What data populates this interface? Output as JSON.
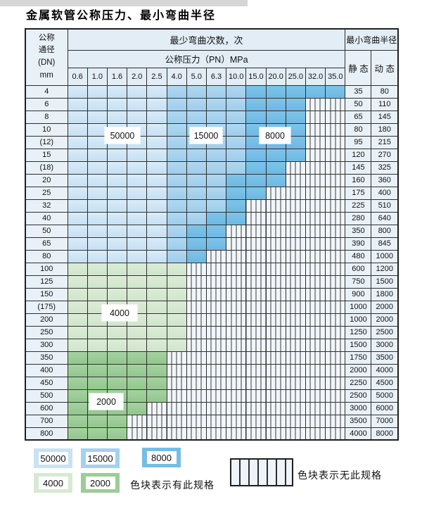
{
  "page": {
    "title": "金属软管公称压力、最小弯曲半径"
  },
  "table": {
    "corner_lines": [
      "公称",
      "通径",
      "(DN)",
      "mm"
    ],
    "bend_times_header": "最少弯曲次数，次",
    "pressure_header": "公称压力（PN）MPa",
    "radius_header": "最小弯曲半径",
    "static_label": "静 态",
    "dynamic_label": "动 态",
    "pressure_columns": [
      "0.6",
      "1.0",
      "1.6",
      "2.0",
      "2.5",
      "4.0",
      "5.0",
      "6.3",
      "10.0",
      "15.0",
      "20.0",
      "25.0",
      "32.0",
      "35.0"
    ],
    "rows": [
      {
        "dn": "4",
        "static": "35",
        "dynamic": "80",
        "palette": "blue",
        "light": 5,
        "medium": 4,
        "dark": 5
      },
      {
        "dn": "6",
        "static": "50",
        "dynamic": "110",
        "palette": "blue",
        "light": 5,
        "medium": 4,
        "dark": 3
      },
      {
        "dn": "8",
        "static": "65",
        "dynamic": "145",
        "palette": "blue",
        "light": 5,
        "medium": 4,
        "dark": 3
      },
      {
        "dn": "10",
        "static": "80",
        "dynamic": "180",
        "palette": "blue",
        "light": 5,
        "medium": 4,
        "dark": 3
      },
      {
        "dn": "(12)",
        "static": "95",
        "dynamic": "215",
        "palette": "blue",
        "light": 5,
        "medium": 4,
        "dark": 3
      },
      {
        "dn": "15",
        "static": "120",
        "dynamic": "270",
        "palette": "blue",
        "light": 5,
        "medium": 4,
        "dark": 3
      },
      {
        "dn": "(18)",
        "static": "145",
        "dynamic": "325",
        "palette": "blue",
        "light": 5,
        "medium": 4,
        "dark": 2
      },
      {
        "dn": "20",
        "static": "160",
        "dynamic": "360",
        "palette": "blue",
        "light": 5,
        "medium": 3,
        "dark": 3
      },
      {
        "dn": "25",
        "static": "175",
        "dynamic": "400",
        "palette": "blue",
        "light": 5,
        "medium": 3,
        "dark": 2
      },
      {
        "dn": "32",
        "static": "225",
        "dynamic": "510",
        "palette": "blue",
        "light": 5,
        "medium": 3,
        "dark": 1
      },
      {
        "dn": "40",
        "static": "280",
        "dynamic": "640",
        "palette": "blue",
        "light": 5,
        "medium": 2,
        "dark": 2
      },
      {
        "dn": "50",
        "static": "350",
        "dynamic": "800",
        "palette": "blue",
        "light": 5,
        "medium": 1,
        "dark": 2
      },
      {
        "dn": "65",
        "static": "390",
        "dynamic": "845",
        "palette": "blue",
        "light": 5,
        "medium": 1,
        "dark": 2
      },
      {
        "dn": "80",
        "static": "480",
        "dynamic": "1000",
        "palette": "blue",
        "light": 5,
        "medium": 1,
        "dark": 1
      },
      {
        "dn": "100",
        "static": "600",
        "dynamic": "1200",
        "palette": "green",
        "light": 6,
        "medium": 0,
        "dark": 0
      },
      {
        "dn": "125",
        "static": "750",
        "dynamic": "1500",
        "palette": "green",
        "light": 6,
        "medium": 0,
        "dark": 0
      },
      {
        "dn": "150",
        "static": "900",
        "dynamic": "1800",
        "palette": "green",
        "light": 6,
        "medium": 0,
        "dark": 0
      },
      {
        "dn": "(175)",
        "static": "1000",
        "dynamic": "2000",
        "palette": "green",
        "light": 6,
        "medium": 0,
        "dark": 0
      },
      {
        "dn": "200",
        "static": "1000",
        "dynamic": "2000",
        "palette": "green",
        "light": 6,
        "medium": 0,
        "dark": 0
      },
      {
        "dn": "250",
        "static": "1250",
        "dynamic": "2500",
        "palette": "green",
        "light": 6,
        "medium": 0,
        "dark": 0
      },
      {
        "dn": "300",
        "static": "1500",
        "dynamic": "3000",
        "palette": "green",
        "light": 6,
        "medium": 0,
        "dark": 0
      },
      {
        "dn": "350",
        "static": "1750",
        "dynamic": "3500",
        "palette": "green",
        "light": 0,
        "medium": 5,
        "dark": 0
      },
      {
        "dn": "400",
        "static": "2000",
        "dynamic": "4000",
        "palette": "green",
        "light": 0,
        "medium": 5,
        "dark": 0
      },
      {
        "dn": "450",
        "static": "2250",
        "dynamic": "4500",
        "palette": "green",
        "light": 0,
        "medium": 5,
        "dark": 0
      },
      {
        "dn": "500",
        "static": "2500",
        "dynamic": "5000",
        "palette": "green",
        "light": 0,
        "medium": 5,
        "dark": 0
      },
      {
        "dn": "600",
        "static": "3000",
        "dynamic": "6000",
        "palette": "green",
        "light": 0,
        "medium": 4,
        "dark": 0
      },
      {
        "dn": "700",
        "static": "3500",
        "dynamic": "7000",
        "palette": "green",
        "light": 0,
        "medium": 3,
        "dark": 0
      },
      {
        "dn": "800",
        "static": "4000",
        "dynamic": "8000",
        "palette": "green",
        "light": 0,
        "medium": 3,
        "dark": 0
      }
    ]
  },
  "legend": {
    "row1": [
      {
        "value": "50000",
        "key": "b-light"
      },
      {
        "value": "15000",
        "key": "b-med"
      },
      {
        "value": "8000",
        "key": "b-dark"
      }
    ],
    "row2": [
      {
        "value": "4000",
        "key": "g-light"
      },
      {
        "value": "2000",
        "key": "g-med"
      }
    ],
    "has_spec_label": "色块表示有此规格",
    "no_spec_label": "色块表示无此规格"
  },
  "colors": {
    "cycles_50000": "#c9e2f4",
    "cycles_15000": "#a3d1ee",
    "cycles_8000": "#74bde7",
    "cycles_4000": "#d7e9d3",
    "cycles_2000": "#9ccd97",
    "header_bg": "#e2edf6",
    "row_header_bg": "#e9f1f8",
    "grid_line": "#2e2e2e"
  }
}
